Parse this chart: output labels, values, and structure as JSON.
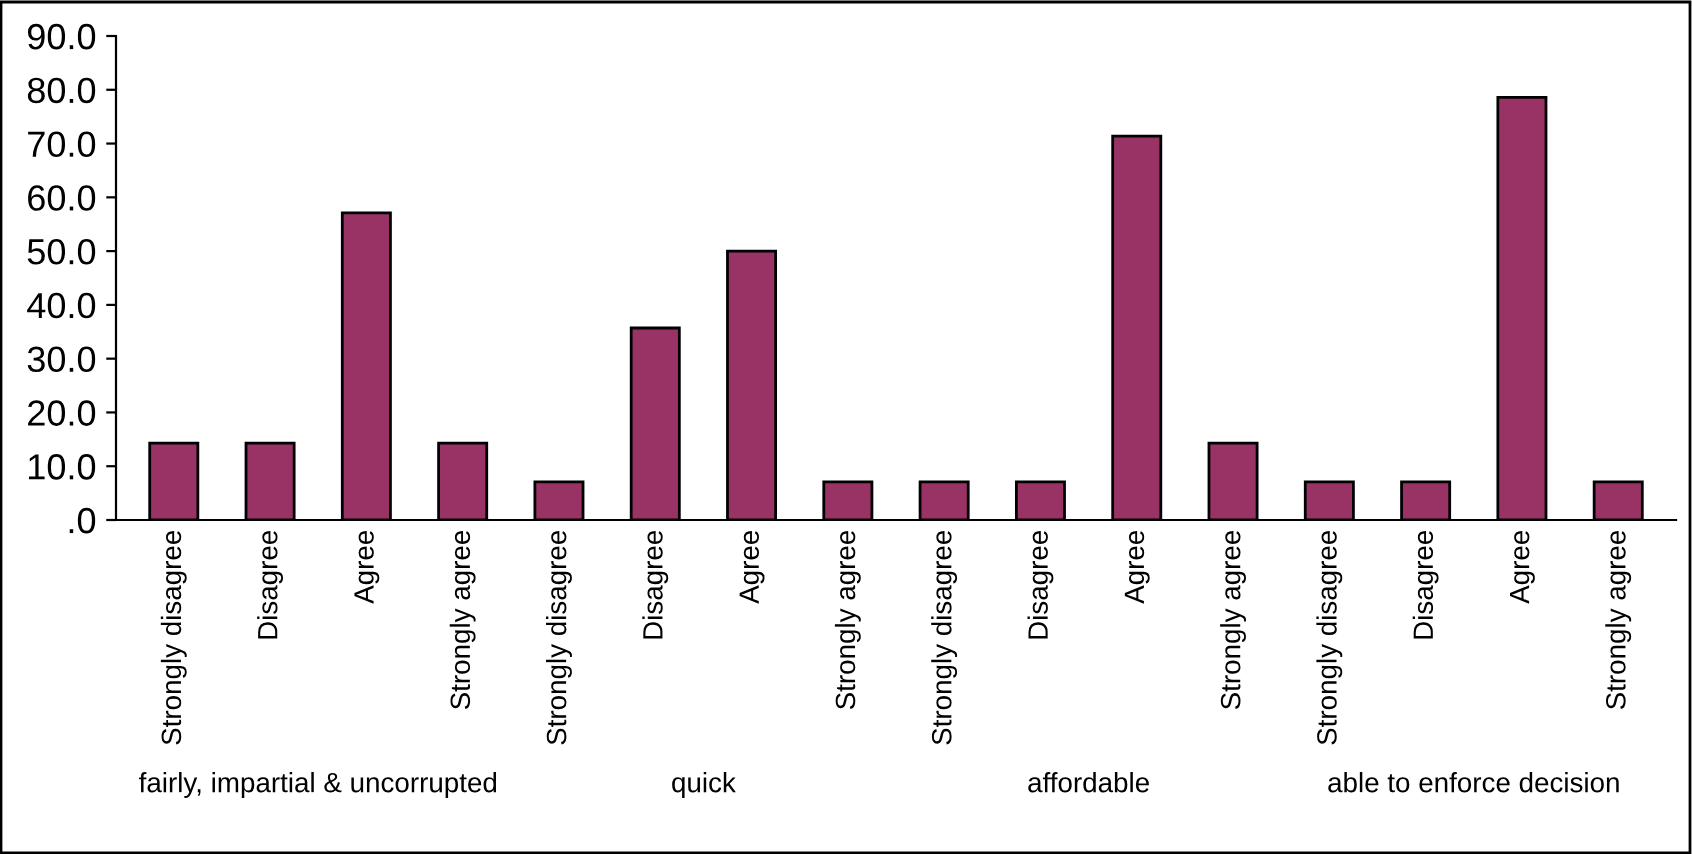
{
  "chart_data": {
    "type": "bar",
    "categories": [
      "Strongly disagree",
      "Disagree",
      "Agree",
      "Strongly agree",
      "Strongly disagree",
      "Disagree",
      "Agree",
      "Strongly agree",
      "Strongly disagree",
      "Disagree",
      "Agree",
      "Strongly agree",
      "Strongly disagree",
      "Disagree",
      "Agree",
      "Strongly agree"
    ],
    "values": [
      14.3,
      14.3,
      57.1,
      14.3,
      7.1,
      35.7,
      50.0,
      7.1,
      7.1,
      7.1,
      71.4,
      14.3,
      7.1,
      7.1,
      78.6,
      7.1
    ],
    "color": "#993366",
    "ylim": [
      0,
      90
    ],
    "yticks": [
      {
        "value": 0,
        "label": ".0"
      },
      {
        "value": 10,
        "label": "10.0"
      },
      {
        "value": 20,
        "label": "20.0"
      },
      {
        "value": 30,
        "label": "30.0"
      },
      {
        "value": 40,
        "label": "40.0"
      },
      {
        "value": 50,
        "label": "50.0"
      },
      {
        "value": 60,
        "label": "60.0"
      },
      {
        "value": 70,
        "label": "70.0"
      },
      {
        "value": 80,
        "label": "80.0"
      },
      {
        "value": 90,
        "label": "90.0"
      }
    ],
    "annotations": [
      "fairly, impartial & uncorrupted",
      "quick",
      "affordable",
      "able to enforce decision"
    ],
    "grid": false,
    "legend": false
  }
}
